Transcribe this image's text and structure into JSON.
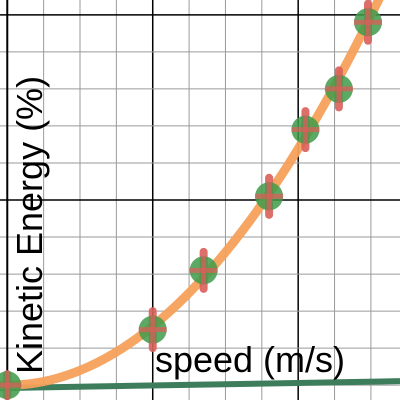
{
  "chart_data": {
    "type": "scatter",
    "xlabel": "speed (m/s)",
    "ylabel": "Kinetic Energy (%)",
    "grid": true,
    "xlim": [
      -0.05,
      2.7
    ],
    "ylim": [
      -2,
      52
    ],
    "points": [
      {
        "x": 0.0,
        "y": 0.0,
        "err": 1.5
      },
      {
        "x": 1.0,
        "y": 7.5,
        "err": 2.5
      },
      {
        "x": 1.35,
        "y": 15.5,
        "err": 2.5
      },
      {
        "x": 1.8,
        "y": 25.5,
        "err": 2.5
      },
      {
        "x": 2.05,
        "y": 34.5,
        "err": 2.5
      },
      {
        "x": 2.28,
        "y": 40.0,
        "err": 2.5
      },
      {
        "x": 2.48,
        "y": 49.0,
        "err": 2.5
      }
    ],
    "fit": {
      "type": "quadratic",
      "coefficient": 7.98
    },
    "colors": {
      "fit": "#f5a05a",
      "marker": "#3f9a4a",
      "errorbar": "#d9605a",
      "baseline": "#3e7d5c"
    }
  }
}
